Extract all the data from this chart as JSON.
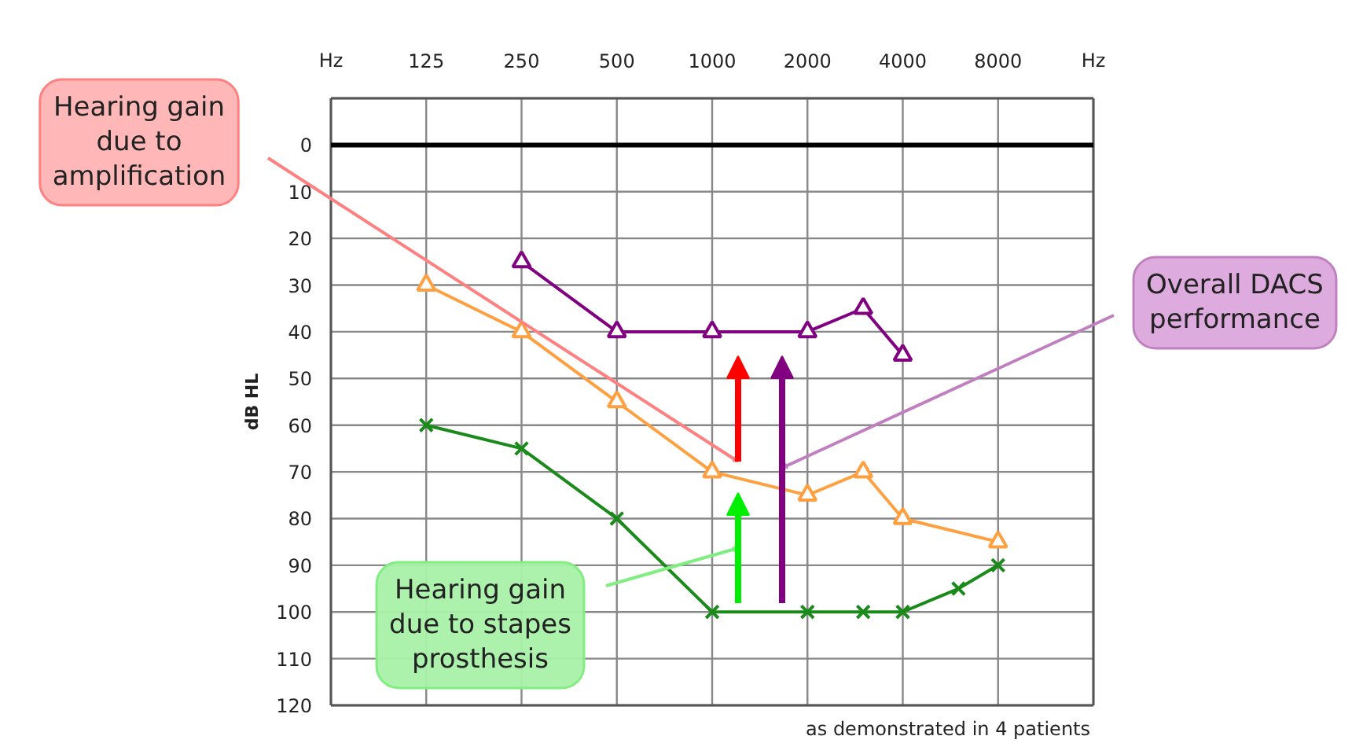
{
  "chart_data": {
    "type": "line",
    "ylabel": "dB HL",
    "log": "x",
    "grid": true,
    "xlim": [
      62.5,
      16000
    ],
    "ylim": [
      120,
      -10
    ],
    "xticks": [
      {
        "value": 62.5,
        "label": "Hz"
      },
      125,
      250,
      500,
      1000,
      2000,
      4000,
      8000,
      {
        "value": 16000,
        "label": "Hz"
      }
    ],
    "yticks": [
      0,
      10,
      20,
      30,
      40,
      50,
      60,
      70,
      80,
      90,
      100,
      110,
      120
    ],
    "ref_lines": [
      {
        "axis": "y",
        "value": 0,
        "label": null,
        "color": "#000000"
      }
    ],
    "series": [
      {
        "color": "#ffa040",
        "marker": "triangle",
        "x": [
          125,
          250,
          500,
          1000,
          2000,
          3000,
          4000,
          8000
        ],
        "values": [
          30,
          40,
          55,
          70,
          75,
          70,
          80,
          85
        ]
      },
      {
        "color": "#1a8a1a",
        "marker": "cross",
        "x": [
          125,
          250,
          500,
          1000,
          2000,
          3000,
          4000,
          6000,
          8000
        ],
        "values": [
          60,
          65,
          80,
          100,
          100,
          100,
          100,
          95,
          90
        ]
      },
      {
        "color": "#800080",
        "marker": "triangle",
        "x": [
          250,
          500,
          1000,
          2000,
          3000,
          4000
        ],
        "values": [
          25,
          40,
          40,
          40,
          35,
          45
        ]
      }
    ],
    "annotations": [
      "Hearing gain\ndue to\namplification",
      "Overall DACS\nperformance",
      "Hearing gain\ndue to stapes\nprosthesis",
      "as demonstrated in 4 patients"
    ]
  }
}
